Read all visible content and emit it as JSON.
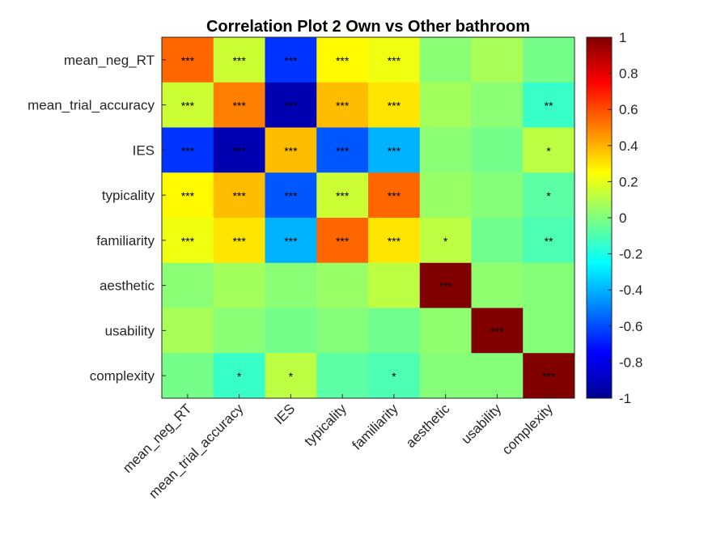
{
  "chart_data": {
    "type": "heatmap",
    "title": "Correlation Plot 2 Own vs Other bathroom",
    "xlabel": "",
    "ylabel": "",
    "row_labels": [
      "mean_neg_RT",
      "mean_trial_accuracy",
      "IES",
      "typicality",
      "familiarity",
      "aesthetic",
      "usability",
      "complexity"
    ],
    "col_labels": [
      "mean_neg_RT",
      "mean_trial_accuracy",
      "IES",
      "typicality",
      "familiarity",
      "aesthetic",
      "usability",
      "complexity"
    ],
    "values": [
      [
        0.55,
        0.15,
        -0.65,
        0.26,
        0.22,
        0.02,
        0.08,
        -0.02
      ],
      [
        0.15,
        0.5,
        -0.9,
        0.38,
        0.3,
        0.07,
        0.02,
        -0.14
      ],
      [
        -0.65,
        -0.9,
        0.38,
        -0.58,
        -0.4,
        0.02,
        -0.02,
        0.12
      ],
      [
        0.26,
        0.38,
        -0.58,
        0.15,
        0.55,
        0.05,
        0.01,
        -0.07
      ],
      [
        0.22,
        0.3,
        -0.4,
        0.55,
        0.3,
        0.12,
        -0.03,
        -0.1
      ],
      [
        0.02,
        0.07,
        0.02,
        0.05,
        0.12,
        1.0,
        0.03,
        0.01
      ],
      [
        0.08,
        0.02,
        -0.02,
        0.01,
        -0.03,
        0.03,
        1.0,
        0.01
      ],
      [
        -0.02,
        -0.14,
        0.12,
        -0.07,
        -0.1,
        0.01,
        0.01,
        1.0
      ]
    ],
    "significance": [
      [
        "***",
        "***",
        "***",
        "***",
        "***",
        "",
        "",
        ""
      ],
      [
        "***",
        "***",
        "***",
        "***",
        "***",
        "",
        "",
        "**"
      ],
      [
        "***",
        "***",
        "***",
        "***",
        "***",
        "",
        "",
        "*"
      ],
      [
        "***",
        "***",
        "***",
        "***",
        "***",
        "",
        "",
        "*"
      ],
      [
        "***",
        "***",
        "***",
        "***",
        "***",
        "*",
        "",
        "**"
      ],
      [
        "",
        "",
        "",
        "",
        "",
        "***",
        "",
        ""
      ],
      [
        "",
        "",
        "",
        "",
        "",
        "",
        "***",
        ""
      ],
      [
        "",
        "*",
        "*",
        "",
        "*",
        "",
        "",
        "***"
      ]
    ],
    "clim": [
      -1,
      1
    ],
    "colormap": "jet",
    "colorbar_ticks": [
      "1",
      "0.8",
      "0.6",
      "0.4",
      "0.2",
      "0",
      "-0.2",
      "-0.4",
      "-0.6",
      "-0.8",
      "-1"
    ],
    "colorbar_position": "right",
    "grid": false
  }
}
